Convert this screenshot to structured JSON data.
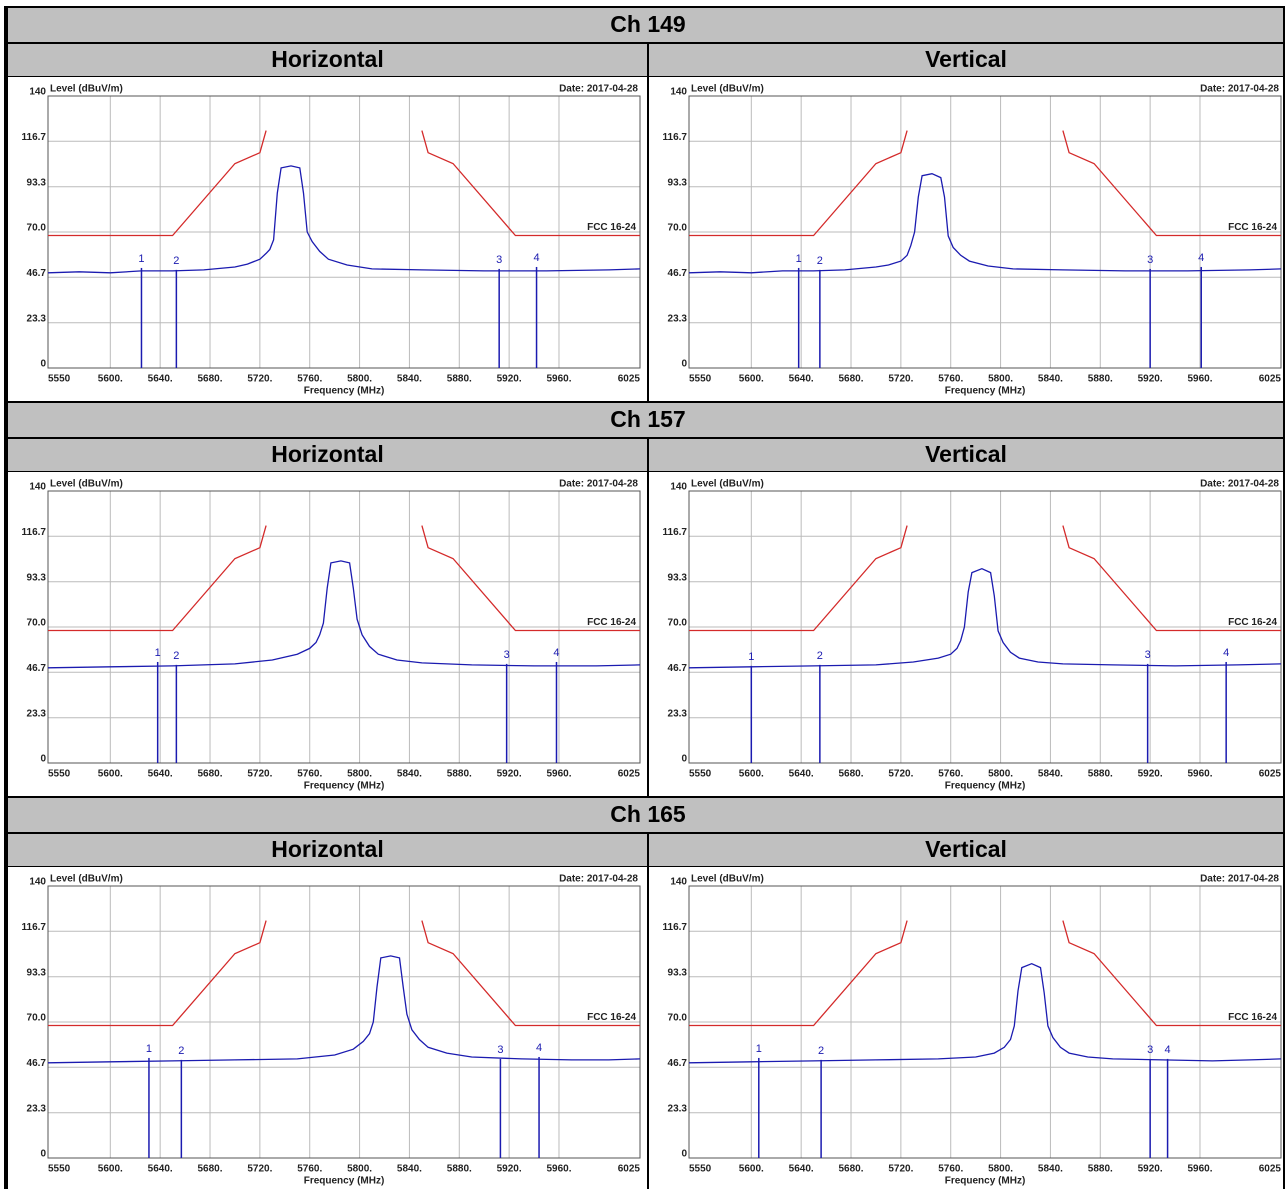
{
  "table": {
    "sections": [
      {
        "channel": "Ch 149",
        "columns": [
          "Horizontal",
          "Vertical"
        ]
      },
      {
        "channel": "Ch 157",
        "columns": [
          "Horizontal",
          "Vertical"
        ]
      },
      {
        "channel": "Ch 165",
        "columns": [
          "Horizontal",
          "Vertical"
        ]
      }
    ]
  },
  "chart_data": [
    {
      "type": "line",
      "y_label": "Level (dBuV/m)",
      "x_label": "Frequency (MHz)",
      "date": "Date: 2017-04-28",
      "grid": true,
      "xlim": [
        5550,
        6025
      ],
      "ylim": [
        0,
        140
      ],
      "xticks": [
        5550,
        {
          "value": 5600,
          "label": "5600."
        },
        {
          "value": 5640,
          "label": "5640."
        },
        {
          "value": 5680,
          "label": "5680."
        },
        {
          "value": 5720,
          "label": "5720."
        },
        {
          "value": 5760,
          "label": "5760."
        },
        {
          "value": 5800,
          "label": "5800."
        },
        {
          "value": 5840,
          "label": "5840."
        },
        {
          "value": 5880,
          "label": "5880."
        },
        {
          "value": 5920,
          "label": "5920."
        },
        {
          "value": 5960,
          "label": "5960."
        },
        6025
      ],
      "yticks": [
        0,
        23.3,
        46.7,
        {
          "value": 70,
          "label": "70.0"
        },
        93.3,
        116.7,
        140
      ],
      "series": [
        {
          "name": "FCC 16-24",
          "color": "#d42a2a",
          "x": [
            5550,
            5650,
            5700,
            5720,
            5725,
            null,
            5850,
            5855,
            5875,
            5925,
            6025
          ],
          "values": [
            68.2,
            68.2,
            105.2,
            110.8,
            122.2,
            null,
            122.2,
            110.8,
            105.2,
            68.2,
            68.2
          ]
        },
        {
          "color": "#1b1bb0",
          "x": [
            5550,
            5575,
            5600,
            5625,
            5650,
            5675,
            5700,
            5710,
            5720,
            5725,
            5728,
            5731,
            5734,
            5737,
            5745,
            5752,
            5755,
            5758,
            5762,
            5768,
            5775,
            5790,
            5810,
            5850,
            5900,
            5950,
            6000,
            6025
          ],
          "values": [
            49,
            49.5,
            49,
            50,
            50,
            50.5,
            52,
            53.5,
            56,
            59,
            61,
            66,
            90,
            103,
            104,
            103,
            90,
            70,
            65,
            60,
            56,
            53,
            51,
            50.5,
            50,
            50,
            50.5,
            51
          ]
        }
      ],
      "markers": {
        "color": "#1b1bb0",
        "labels": [
          "1",
          "2",
          "3",
          "4"
        ],
        "x": [
          5625,
          5653,
          5912,
          5942
        ],
        "values": [
          51.5,
          50.5,
          51,
          52
        ]
      }
    },
    {
      "type": "line",
      "y_label": "Level (dBuV/m)",
      "x_label": "Frequency (MHz)",
      "date": "Date: 2017-04-28",
      "grid": true,
      "xlim": [
        5550,
        6025
      ],
      "ylim": [
        0,
        140
      ],
      "xticks": [
        5550,
        {
          "value": 5600,
          "label": "5600."
        },
        {
          "value": 5640,
          "label": "5640."
        },
        {
          "value": 5680,
          "label": "5680."
        },
        {
          "value": 5720,
          "label": "5720."
        },
        {
          "value": 5760,
          "label": "5760."
        },
        {
          "value": 5800,
          "label": "5800."
        },
        {
          "value": 5840,
          "label": "5840."
        },
        {
          "value": 5880,
          "label": "5880."
        },
        {
          "value": 5920,
          "label": "5920."
        },
        {
          "value": 5960,
          "label": "5960."
        },
        6025
      ],
      "yticks": [
        0,
        23.3,
        46.7,
        {
          "value": 70,
          "label": "70.0"
        },
        93.3,
        116.7,
        140
      ],
      "series": [
        {
          "name": "FCC 16-24",
          "color": "#d42a2a",
          "x": [
            5550,
            5650,
            5700,
            5720,
            5725,
            null,
            5850,
            5855,
            5875,
            5925,
            6025
          ],
          "values": [
            68.2,
            68.2,
            105.2,
            110.8,
            122.2,
            null,
            122.2,
            110.8,
            105.2,
            68.2,
            68.2
          ]
        },
        {
          "color": "#1b1bb0",
          "x": [
            5550,
            5575,
            5600,
            5625,
            5650,
            5675,
            5700,
            5710,
            5720,
            5725,
            5728,
            5731,
            5734,
            5737,
            5745,
            5752,
            5755,
            5758,
            5762,
            5768,
            5775,
            5790,
            5810,
            5850,
            5900,
            5950,
            6000,
            6025
          ],
          "values": [
            49,
            49.5,
            49,
            50,
            50,
            50.5,
            52,
            53,
            55,
            58,
            63,
            70,
            88,
            99,
            100,
            98,
            88,
            68,
            62,
            58,
            55,
            52.5,
            51,
            50.5,
            50,
            50,
            50.5,
            51
          ]
        }
      ],
      "markers": {
        "color": "#1b1bb0",
        "labels": [
          "1",
          "2",
          "3",
          "4"
        ],
        "x": [
          5638,
          5655,
          5920,
          5961
        ],
        "values": [
          51.5,
          50.5,
          51,
          52
        ]
      }
    },
    {
      "type": "line",
      "y_label": "Level (dBuV/m)",
      "x_label": "Frequency (MHz)",
      "date": "Date: 2017-04-28",
      "grid": true,
      "xlim": [
        5550,
        6025
      ],
      "ylim": [
        0,
        140
      ],
      "xticks": [
        5550,
        {
          "value": 5600,
          "label": "5600."
        },
        {
          "value": 5640,
          "label": "5640."
        },
        {
          "value": 5680,
          "label": "5680."
        },
        {
          "value": 5720,
          "label": "5720."
        },
        {
          "value": 5760,
          "label": "5760."
        },
        {
          "value": 5800,
          "label": "5800."
        },
        {
          "value": 5840,
          "label": "5840."
        },
        {
          "value": 5880,
          "label": "5880."
        },
        {
          "value": 5920,
          "label": "5920."
        },
        {
          "value": 5960,
          "label": "5960."
        },
        6025
      ],
      "yticks": [
        0,
        23.3,
        46.7,
        {
          "value": 70,
          "label": "70.0"
        },
        93.3,
        116.7,
        140
      ],
      "series": [
        {
          "name": "FCC 16-24",
          "color": "#d42a2a",
          "x": [
            5550,
            5650,
            5700,
            5720,
            5725,
            null,
            5850,
            5855,
            5875,
            5925,
            6025
          ],
          "values": [
            68.2,
            68.2,
            105.2,
            110.8,
            122.2,
            null,
            122.2,
            110.8,
            105.2,
            68.2,
            68.2
          ]
        },
        {
          "color": "#1b1bb0",
          "x": [
            5550,
            5600,
            5650,
            5700,
            5730,
            5750,
            5760,
            5765,
            5768,
            5771,
            5774,
            5777,
            5785,
            5792,
            5795,
            5798,
            5802,
            5808,
            5815,
            5830,
            5850,
            5890,
            5940,
            5990,
            6025
          ],
          "values": [
            49,
            49.5,
            50,
            51,
            53,
            56,
            59,
            62,
            66,
            72,
            90,
            103,
            104,
            103,
            90,
            74,
            66,
            60,
            56,
            53,
            51.5,
            50.5,
            50,
            50,
            50.5
          ]
        }
      ],
      "markers": {
        "color": "#1b1bb0",
        "labels": [
          "1",
          "2",
          "3",
          "4"
        ],
        "x": [
          5638,
          5653,
          5918,
          5958
        ],
        "values": [
          52,
          50.5,
          51,
          52
        ]
      }
    },
    {
      "type": "line",
      "y_label": "Level (dBuV/m)",
      "x_label": "Frequency (MHz)",
      "date": "Date: 2017-04-28",
      "grid": true,
      "xlim": [
        5550,
        6025
      ],
      "ylim": [
        0,
        140
      ],
      "xticks": [
        5550,
        {
          "value": 5600,
          "label": "5600."
        },
        {
          "value": 5640,
          "label": "5640."
        },
        {
          "value": 5680,
          "label": "5680."
        },
        {
          "value": 5720,
          "label": "5720."
        },
        {
          "value": 5760,
          "label": "5760."
        },
        {
          "value": 5800,
          "label": "5800."
        },
        {
          "value": 5840,
          "label": "5840."
        },
        {
          "value": 5880,
          "label": "5880."
        },
        {
          "value": 5920,
          "label": "5920."
        },
        {
          "value": 5960,
          "label": "5960."
        },
        6025
      ],
      "yticks": [
        0,
        23.3,
        46.7,
        {
          "value": 70,
          "label": "70.0"
        },
        93.3,
        116.7,
        140
      ],
      "series": [
        {
          "name": "FCC 16-24",
          "color": "#d42a2a",
          "x": [
            5550,
            5650,
            5700,
            5720,
            5725,
            null,
            5850,
            5855,
            5875,
            5925,
            6025
          ],
          "values": [
            68.2,
            68.2,
            105.2,
            110.8,
            122.2,
            null,
            122.2,
            110.8,
            105.2,
            68.2,
            68.2
          ]
        },
        {
          "color": "#1b1bb0",
          "x": [
            5550,
            5600,
            5650,
            5700,
            5730,
            5750,
            5760,
            5765,
            5768,
            5771,
            5774,
            5777,
            5785,
            5792,
            5795,
            5798,
            5802,
            5808,
            5815,
            5830,
            5850,
            5890,
            5940,
            5990,
            6025
          ],
          "values": [
            49,
            49.5,
            50,
            50.5,
            52,
            54,
            56,
            59,
            63,
            70,
            88,
            98,
            100,
            98,
            86,
            68,
            62,
            57,
            54,
            52,
            51,
            50.5,
            50,
            50.5,
            51
          ]
        }
      ],
      "markers": {
        "color": "#1b1bb0",
        "labels": [
          "1",
          "2",
          "3",
          "4"
        ],
        "x": [
          5600,
          5655,
          5918,
          5981
        ],
        "values": [
          50,
          50.5,
          51,
          52
        ]
      }
    },
    {
      "type": "line",
      "y_label": "Level (dBuV/m)",
      "x_label": "Frequency (MHz)",
      "date": "Date: 2017-04-28",
      "grid": true,
      "xlim": [
        5550,
        6025
      ],
      "ylim": [
        0,
        140
      ],
      "xticks": [
        5550,
        {
          "value": 5600,
          "label": "5600."
        },
        {
          "value": 5640,
          "label": "5640."
        },
        {
          "value": 5680,
          "label": "5680."
        },
        {
          "value": 5720,
          "label": "5720."
        },
        {
          "value": 5760,
          "label": "5760."
        },
        {
          "value": 5800,
          "label": "5800."
        },
        {
          "value": 5840,
          "label": "5840."
        },
        {
          "value": 5880,
          "label": "5880."
        },
        {
          "value": 5920,
          "label": "5920."
        },
        {
          "value": 5960,
          "label": "5960."
        },
        6025
      ],
      "yticks": [
        0,
        23.3,
        46.7,
        {
          "value": 70,
          "label": "70.0"
        },
        93.3,
        116.7,
        140
      ],
      "series": [
        {
          "name": "FCC 16-24",
          "color": "#d42a2a",
          "x": [
            5550,
            5650,
            5700,
            5720,
            5725,
            null,
            5850,
            5855,
            5875,
            5925,
            6025
          ],
          "values": [
            68.2,
            68.2,
            105.2,
            110.8,
            122.2,
            null,
            122.2,
            110.8,
            105.2,
            68.2,
            68.2
          ]
        },
        {
          "color": "#1b1bb0",
          "x": [
            5550,
            5600,
            5650,
            5700,
            5750,
            5780,
            5795,
            5803,
            5808,
            5811,
            5814,
            5817,
            5825,
            5832,
            5835,
            5838,
            5842,
            5848,
            5855,
            5870,
            5890,
            5930,
            5970,
            6000,
            6025
          ],
          "values": [
            49,
            49.5,
            50,
            50.5,
            51,
            53,
            56,
            60,
            64,
            70,
            88,
            103,
            104,
            103,
            88,
            74,
            66,
            61,
            57,
            54,
            52,
            51,
            50.5,
            50.5,
            51
          ]
        }
      ],
      "markers": {
        "color": "#1b1bb0",
        "labels": [
          "1",
          "2",
          "3",
          "4"
        ],
        "x": [
          5631,
          5657,
          5913,
          5944
        ],
        "values": [
          51.5,
          50.5,
          51,
          52
        ]
      }
    },
    {
      "type": "line",
      "y_label": "Level (dBuV/m)",
      "x_label": "Frequency (MHz)",
      "date": "Date: 2017-04-28",
      "grid": true,
      "xlim": [
        5550,
        6025
      ],
      "ylim": [
        0,
        140
      ],
      "xticks": [
        5550,
        {
          "value": 5600,
          "label": "5600."
        },
        {
          "value": 5640,
          "label": "5640."
        },
        {
          "value": 5680,
          "label": "5680."
        },
        {
          "value": 5720,
          "label": "5720."
        },
        {
          "value": 5760,
          "label": "5760."
        },
        {
          "value": 5800,
          "label": "5800."
        },
        {
          "value": 5840,
          "label": "5840."
        },
        {
          "value": 5880,
          "label": "5880."
        },
        {
          "value": 5920,
          "label": "5920."
        },
        {
          "value": 5960,
          "label": "5960."
        },
        6025
      ],
      "yticks": [
        0,
        23.3,
        46.7,
        {
          "value": 70,
          "label": "70.0"
        },
        93.3,
        116.7,
        140
      ],
      "series": [
        {
          "name": "FCC 16-24",
          "color": "#d42a2a",
          "x": [
            5550,
            5650,
            5700,
            5720,
            5725,
            null,
            5850,
            5855,
            5875,
            5925,
            6025
          ],
          "values": [
            68.2,
            68.2,
            105.2,
            110.8,
            122.2,
            null,
            122.2,
            110.8,
            105.2,
            68.2,
            68.2
          ]
        },
        {
          "color": "#1b1bb0",
          "x": [
            5550,
            5600,
            5650,
            5700,
            5750,
            5780,
            5795,
            5803,
            5808,
            5811,
            5814,
            5817,
            5825,
            5832,
            5835,
            5838,
            5842,
            5848,
            5855,
            5870,
            5890,
            5930,
            5970,
            6000,
            6025
          ],
          "values": [
            49,
            49.5,
            50,
            50.5,
            51,
            52,
            54,
            57,
            61,
            68,
            86,
            98,
            100,
            98,
            85,
            68,
            62,
            57,
            54,
            52,
            51,
            50.5,
            50,
            50.5,
            51
          ]
        }
      ],
      "markers": {
        "color": "#1b1bb0",
        "labels": [
          "1",
          "2",
          "3",
          "4"
        ],
        "x": [
          5606,
          5656,
          5920,
          5934
        ],
        "values": [
          51.5,
          50.5,
          51,
          51
        ]
      }
    }
  ]
}
